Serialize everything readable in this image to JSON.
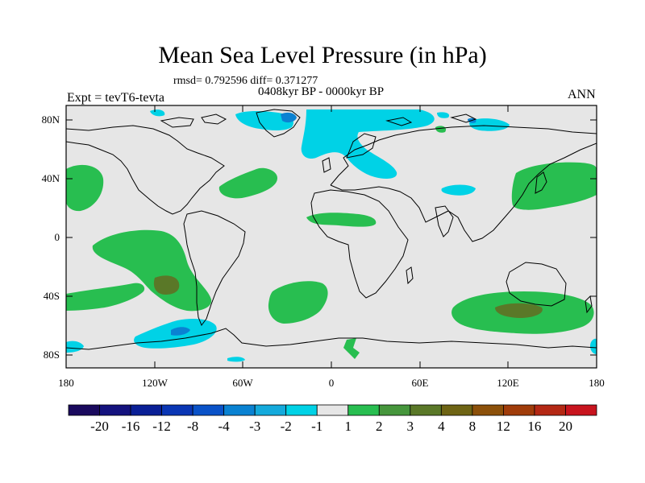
{
  "title": "Mean Sea Level Pressure (in hPa)",
  "stats_line": "rmsd= 0.792596 diff= 0.371277",
  "period_line": "0408kyr BP - 0000kyr BP",
  "expt_label": "Expt = tevT6-tevta",
  "season_label": "ANN",
  "map": {
    "lat_ticks": [
      "80N",
      "40N",
      "0",
      "40S",
      "80S"
    ],
    "lon_ticks": [
      "180",
      "120W",
      "60W",
      "0",
      "60E",
      "120E",
      "180"
    ],
    "ocean_color": "#e6e6e6"
  },
  "colorbar": {
    "colors": [
      "#1a0a5e",
      "#14127e",
      "#0a1f96",
      "#0a36b4",
      "#0a52c8",
      "#0a82d2",
      "#14aadc",
      "#00d2e6",
      "#e6e6e6",
      "#28be50",
      "#46963c",
      "#5a7828",
      "#6e6414",
      "#8c500a",
      "#a03c0a",
      "#b42814",
      "#c8141e"
    ],
    "labels": [
      "-20",
      "-16",
      "-12",
      "-8",
      "-4",
      "-3",
      "-2",
      "-1",
      "1",
      "2",
      "3",
      "4",
      "8",
      "12",
      "16",
      "20"
    ]
  }
}
